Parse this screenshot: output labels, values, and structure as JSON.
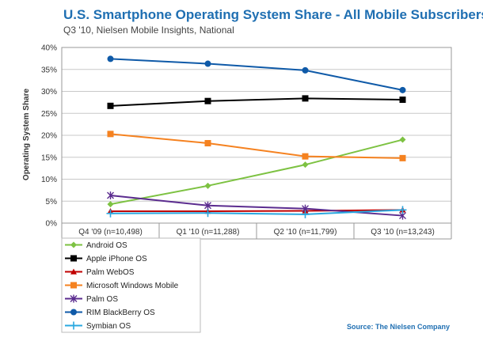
{
  "chart_data": {
    "type": "line",
    "title": "U.S. Smartphone Operating System Share - All Mobile Subscribers",
    "subtitle": "Q3 '10, Nielsen Mobile Insights, National",
    "ylabel": "Operating System Share",
    "xlabel": "",
    "categories": [
      "Q4 '09 (n=10,498)",
      "Q1 '10 (n=11,288)",
      "Q2 '10 (n=11,799)",
      "Q3 '10 (n=13,243)"
    ],
    "ylim": [
      0,
      40
    ],
    "yticks": [
      "0%",
      "5%",
      "10%",
      "15%",
      "20%",
      "25%",
      "30%",
      "35%",
      "40%"
    ],
    "grid": true,
    "legend_position": "bottom-left",
    "series": [
      {
        "name": "Android OS",
        "color": "#7dc242",
        "marker": "diamond",
        "values": [
          4.3,
          8.5,
          13.3,
          19.0
        ]
      },
      {
        "name": "Apple iPhone OS",
        "color": "#000000",
        "marker": "square",
        "values": [
          26.7,
          27.8,
          28.4,
          28.1
        ]
      },
      {
        "name": "Palm WebOS",
        "color": "#c00000",
        "marker": "triangle",
        "values": [
          2.7,
          2.7,
          2.8,
          3.0
        ]
      },
      {
        "name": "Microsoft Windows Mobile",
        "color": "#f58220",
        "marker": "square",
        "values": [
          20.3,
          18.2,
          15.2,
          14.8
        ]
      },
      {
        "name": "Palm OS",
        "color": "#5b2c8f",
        "marker": "star",
        "values": [
          6.3,
          4.0,
          3.3,
          1.7
        ]
      },
      {
        "name": "RIM BlackBerry OS",
        "color": "#0f5aa8",
        "marker": "circle",
        "values": [
          37.4,
          36.3,
          34.8,
          30.3
        ]
      },
      {
        "name": "Symbian OS",
        "color": "#29a8e0",
        "marker": "plus",
        "values": [
          2.2,
          2.3,
          2.0,
          3.0
        ]
      }
    ],
    "source": "Source: The Nielsen Company"
  }
}
